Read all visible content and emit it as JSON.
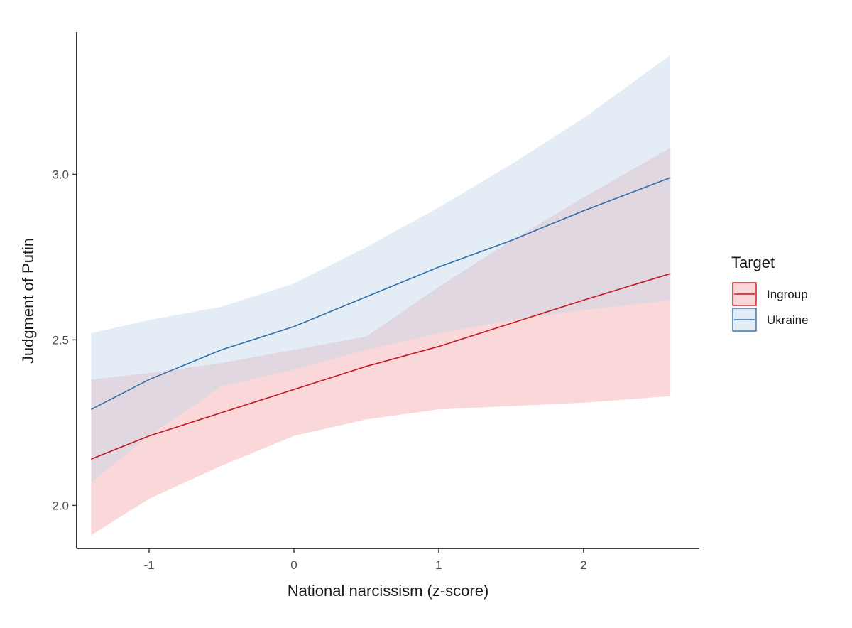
{
  "chart_data": {
    "type": "line",
    "title": "",
    "xlabel": "National narcissism (z-score)",
    "ylabel": "Judgment of Putin",
    "xlim": [
      -1.5,
      2.8
    ],
    "ylim": [
      1.87,
      3.43
    ],
    "xticks": [
      -1,
      0,
      1,
      2
    ],
    "xtick_labels": [
      "-1",
      "0",
      "1",
      "2"
    ],
    "yticks": [
      2.0,
      2.5,
      3.0
    ],
    "ytick_labels": [
      "2.0",
      "2.5",
      "3.0"
    ],
    "grid": false,
    "legend": {
      "title": "Target",
      "position": "right"
    },
    "series": [
      {
        "name": "Ingroup",
        "color": "#c4161c",
        "fill": "#f4a6aa",
        "x": [
          -1.4,
          -1.0,
          -0.5,
          0.0,
          0.5,
          1.0,
          1.5,
          2.0,
          2.6
        ],
        "y": [
          2.14,
          2.21,
          2.28,
          2.35,
          2.42,
          2.48,
          2.55,
          2.62,
          2.7
        ],
        "lower": [
          1.91,
          2.02,
          2.12,
          2.21,
          2.26,
          2.29,
          2.3,
          2.31,
          2.33
        ],
        "upper": [
          2.38,
          2.4,
          2.43,
          2.47,
          2.51,
          2.66,
          2.8,
          2.93,
          3.08
        ]
      },
      {
        "name": "Ukraine",
        "color": "#2f6ea8",
        "fill": "#c3d8ec",
        "x": [
          -1.4,
          -1.0,
          -0.5,
          0.0,
          0.5,
          1.0,
          1.5,
          2.0,
          2.6
        ],
        "y": [
          2.29,
          2.38,
          2.47,
          2.54,
          2.63,
          2.72,
          2.8,
          2.89,
          2.99
        ],
        "lower": [
          2.07,
          2.21,
          2.36,
          2.41,
          2.47,
          2.52,
          2.56,
          2.59,
          2.62
        ],
        "upper": [
          2.52,
          2.56,
          2.6,
          2.67,
          2.78,
          2.9,
          3.03,
          3.17,
          3.36
        ]
      }
    ]
  }
}
